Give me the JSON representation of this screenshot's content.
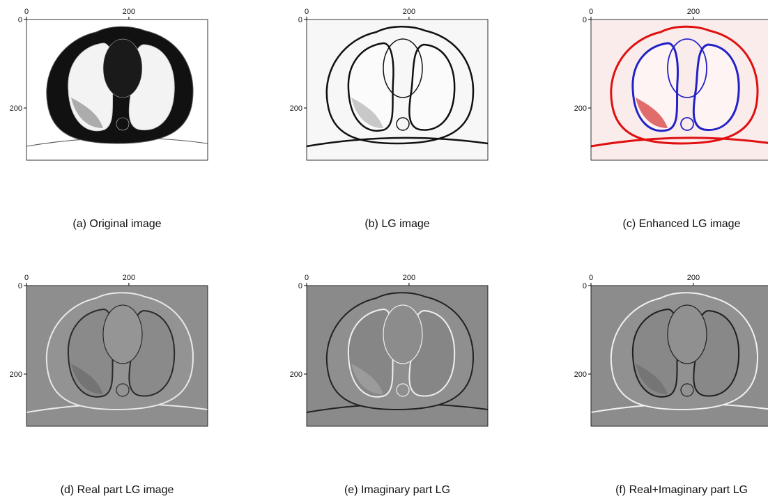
{
  "axes": {
    "xlim": [
      0,
      354
    ],
    "ylim": [
      0,
      318
    ],
    "xticks": [
      0,
      200
    ],
    "yticks": [
      0,
      200
    ]
  },
  "panels": [
    {
      "caption": "(a) Original image"
    },
    {
      "caption": "(b) LG image"
    },
    {
      "caption": "(c) Enhanced LG image"
    },
    {
      "caption": "(d) Real part LG image"
    },
    {
      "caption": "(e) Imaginary part LG"
    },
    {
      "caption": "(f) Real+Imaginary part LG"
    }
  ]
}
